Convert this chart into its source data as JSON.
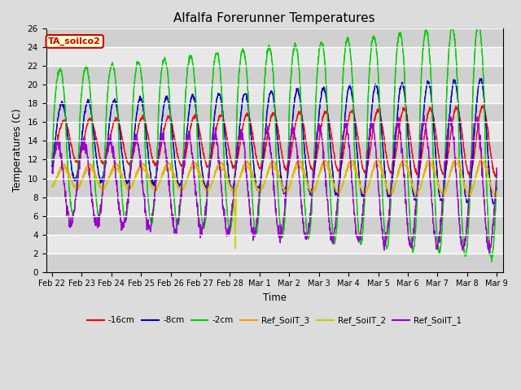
{
  "title": "Alfalfa Forerunner Temperatures",
  "xlabel": "Time",
  "ylabel": "Temperatures (C)",
  "ylim": [
    0,
    26
  ],
  "yticks": [
    0,
    2,
    4,
    6,
    8,
    10,
    12,
    14,
    16,
    18,
    20,
    22,
    24,
    26
  ],
  "plot_bg_color": "#dcdcdc",
  "fig_bg_color": "#dcdcdc",
  "annotation_text": "TA_soilco2",
  "annotation_color": "#cc0000",
  "annotation_bg": "#ffffcc",
  "series": [
    {
      "label": "-16cm",
      "color": "#ff0000"
    },
    {
      "label": "-8cm",
      "color": "#0000cc"
    },
    {
      "label": "-2cm",
      "color": "#00cc00"
    },
    {
      "label": "Ref_SoilT_3",
      "color": "#ff9900"
    },
    {
      "label": "Ref_SoilT_2",
      "color": "#cccc00"
    },
    {
      "label": "Ref_SoilT_1",
      "color": "#9900cc"
    }
  ],
  "num_points": 1632,
  "day_labels": [
    "Feb 22",
    "Feb 23",
    "Feb 24",
    "Feb 25",
    "Feb 26",
    "Feb 27",
    "Feb 28",
    "Mar 1",
    "Mar 2",
    "Mar 3",
    "Mar 4",
    "Mar 5",
    "Mar 6",
    "Mar 7",
    "Mar 8",
    "Mar 9"
  ],
  "figsize": [
    6.4,
    4.8
  ],
  "dpi": 100
}
